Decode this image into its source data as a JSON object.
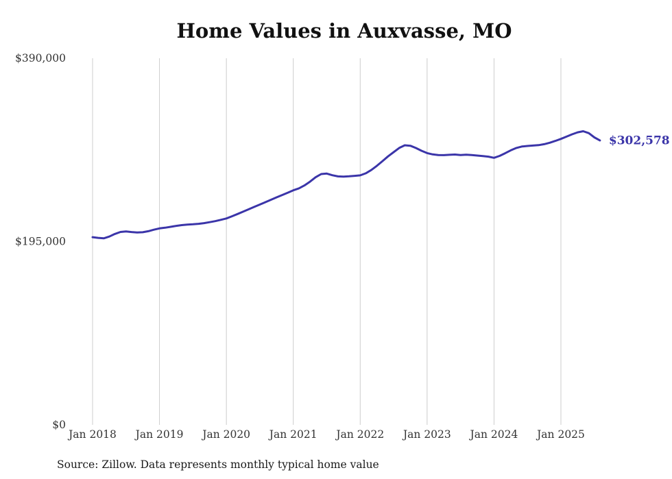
{
  "chart_data": {
    "type": "line",
    "title": "Home Values in Auxvasse, MO",
    "source_note": "Source: Zillow. Data represents monthly typical home value",
    "series_name": "Monthly typical home value",
    "end_label": "$302,578",
    "last_value": 302578,
    "accent_color": "#3b35a9",
    "grid_color": "#cccccc",
    "axis_text_color": "#333333",
    "title_color": "#111111",
    "background_color": "#ffffff",
    "ylim": [
      0,
      390000
    ],
    "grid": "vertical-only",
    "legend": "none",
    "y_ticks": [
      {
        "value": 0,
        "label": "$0"
      },
      {
        "value": 195000,
        "label": "$195,000"
      },
      {
        "value": 390000,
        "label": "$390,000"
      }
    ],
    "x_tick_labels": [
      "Jan 2018",
      "Jan 2019",
      "Jan 2020",
      "Jan 2021",
      "Jan 2022",
      "Jan 2023",
      "Jan 2024",
      "Jan 2025"
    ],
    "months": [
      "Jan 2018",
      "Feb 2018",
      "Mar 2018",
      "Apr 2018",
      "May 2018",
      "Jun 2018",
      "Jul 2018",
      "Aug 2018",
      "Sep 2018",
      "Oct 2018",
      "Nov 2018",
      "Dec 2018",
      "Jan 2019",
      "Feb 2019",
      "Mar 2019",
      "Apr 2019",
      "May 2019",
      "Jun 2019",
      "Jul 2019",
      "Aug 2019",
      "Sep 2019",
      "Oct 2019",
      "Nov 2019",
      "Dec 2019",
      "Jan 2020",
      "Feb 2020",
      "Mar 2020",
      "Apr 2020",
      "May 2020",
      "Jun 2020",
      "Jul 2020",
      "Aug 2020",
      "Sep 2020",
      "Oct 2020",
      "Nov 2020",
      "Dec 2020",
      "Jan 2021",
      "Feb 2021",
      "Mar 2021",
      "Apr 2021",
      "May 2021",
      "Jun 2021",
      "Jul 2021",
      "Aug 2021",
      "Sep 2021",
      "Oct 2021",
      "Nov 2021",
      "Dec 2021",
      "Jan 2022",
      "Feb 2022",
      "Mar 2022",
      "Apr 2022",
      "May 2022",
      "Jun 2022",
      "Jul 2022",
      "Aug 2022",
      "Sep 2022",
      "Oct 2022",
      "Nov 2022",
      "Dec 2022",
      "Jan 2023",
      "Feb 2023",
      "Mar 2023",
      "Apr 2023",
      "May 2023",
      "Jun 2023",
      "Jul 2023",
      "Aug 2023",
      "Sep 2023",
      "Oct 2023",
      "Nov 2023",
      "Dec 2023",
      "Jan 2024",
      "Feb 2024",
      "Mar 2024",
      "Apr 2024",
      "May 2024",
      "Jun 2024",
      "Jul 2024",
      "Aug 2024",
      "Sep 2024",
      "Oct 2024",
      "Nov 2024",
      "Dec 2024",
      "Jan 2025",
      "Feb 2025",
      "Mar 2025",
      "Apr 2025",
      "May 2025",
      "Jun 2025",
      "Jul 2025",
      "Aug 2025"
    ],
    "values": [
      199700,
      198900,
      198400,
      200300,
      203100,
      205200,
      205800,
      205100,
      204600,
      204900,
      206000,
      207600,
      209000,
      209700,
      210700,
      211700,
      212500,
      213100,
      213400,
      213900,
      214600,
      215600,
      216700,
      218100,
      219600,
      221900,
      224300,
      226800,
      229300,
      231900,
      234400,
      236900,
      239500,
      242000,
      244500,
      247000,
      249500,
      251600,
      254700,
      258700,
      263400,
      266800,
      267300,
      265600,
      264300,
      264000,
      264400,
      264900,
      265400,
      267600,
      271100,
      275600,
      280600,
      285600,
      290100,
      294600,
      297400,
      296900,
      294500,
      291600,
      289100,
      287700,
      287100,
      286900,
      287300,
      287600,
      287100,
      287400,
      287000,
      286500,
      286000,
      285300,
      284100,
      286100,
      289000,
      292000,
      294600,
      296100,
      296700,
      297100,
      297600,
      298600,
      300100,
      302100,
      304200,
      306600,
      309100,
      311200,
      312400,
      310300,
      305800,
      302578
    ]
  }
}
